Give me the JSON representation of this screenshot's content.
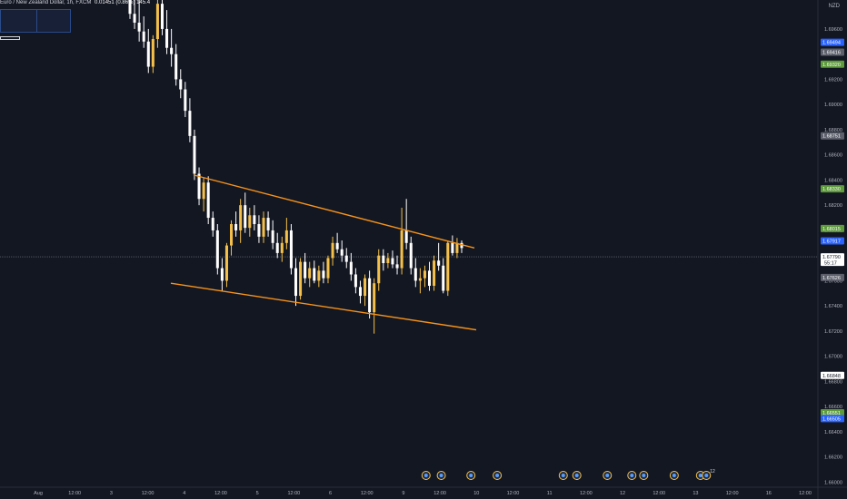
{
  "header": {
    "symbol": "Euro / New Zealand Dollar, 1h, FXCM",
    "change": "0.01451 (0.86%) 145.4"
  },
  "currency": "NZD",
  "colors": {
    "background": "#131722",
    "bull": "#f5c04a",
    "bear": "#ffffff",
    "trendline": "#f7931a",
    "axis_text": "#b2b5be",
    "badge_blue": "#2962ff",
    "badge_green": "#5d9b3b",
    "badge_gray": "#5d606b",
    "badge_white": "#ffffff"
  },
  "chart_data": {
    "type": "candlestick",
    "yscale": [
      1.6596,
      1.6983
    ],
    "y_ticks": [
      "1.69600",
      "1.69400",
      "1.69200",
      "1.69000",
      "1.68800",
      "1.68600",
      "1.68400",
      "1.68200",
      "1.68000",
      "1.67800",
      "1.67600",
      "1.67400",
      "1.67200",
      "1.67000",
      "1.66800",
      "1.66600",
      "1.66400",
      "1.66200",
      "1.66000"
    ],
    "x_labels": [
      "Aug",
      "12:00",
      "3",
      "12:00",
      "4",
      "12:00",
      "5",
      "12:00",
      "6",
      "12:00",
      "9",
      "12:00",
      "10",
      "12:00",
      "11",
      "12:00",
      "12",
      "12:00",
      "13",
      "12:00",
      "16",
      "12:00"
    ],
    "badges": [
      {
        "label": "1.69494",
        "style": "blue"
      },
      {
        "label": "1.69416",
        "style": "gray"
      },
      {
        "label": "1.69320",
        "style": "green"
      },
      {
        "label": "1.68751",
        "style": "gray"
      },
      {
        "label": "1.68330",
        "style": "green"
      },
      {
        "label": "1.68015",
        "style": "green"
      },
      {
        "label": "1.67917",
        "style": "blue"
      },
      {
        "label": "1.67790",
        "sub": "55:17",
        "style": "white"
      },
      {
        "label": "1.67626",
        "style": "gray"
      },
      {
        "label": "1.66848",
        "style": "white"
      },
      {
        "label": "1.66551",
        "style": "green"
      },
      {
        "label": "1.66505",
        "style": "blue"
      }
    ],
    "last_price": 1.6779,
    "trendlines": [
      {
        "name": "upper",
        "from": [
          0,
          1.6844
        ],
        "to": [
          1,
          1.6786
        ]
      },
      {
        "name": "lower",
        "from": [
          0,
          1.6758
        ],
        "to": [
          1,
          1.6721
        ]
      }
    ],
    "candles": [
      [
        1.6985,
        1.6995,
        1.6968,
        1.6972
      ],
      [
        1.6972,
        1.699,
        1.696,
        1.6965
      ],
      [
        1.6965,
        1.6985,
        1.695,
        1.6958
      ],
      [
        1.6958,
        1.697,
        1.6945,
        1.695
      ],
      [
        1.695,
        1.696,
        1.6925,
        1.693
      ],
      [
        1.693,
        1.6955,
        1.6925,
        1.6952
      ],
      [
        1.6952,
        1.6985,
        1.6945,
        1.698
      ],
      [
        1.698,
        1.699,
        1.6955,
        1.696
      ],
      [
        1.696,
        1.6975,
        1.694,
        1.6945
      ],
      [
        1.6945,
        1.696,
        1.693,
        1.694
      ],
      [
        1.694,
        1.6948,
        1.6915,
        1.692
      ],
      [
        1.692,
        1.6928,
        1.6905,
        1.6912
      ],
      [
        1.6912,
        1.6918,
        1.689,
        1.6895
      ],
      [
        1.6895,
        1.6905,
        1.687,
        1.6875
      ],
      [
        1.6875,
        1.688,
        1.684,
        1.6845
      ],
      [
        1.6845,
        1.685,
        1.682,
        1.6825
      ],
      [
        1.6825,
        1.6842,
        1.6815,
        1.6838
      ],
      [
        1.6838,
        1.6843,
        1.6805,
        1.681
      ],
      [
        1.681,
        1.6815,
        1.6795,
        1.68
      ],
      [
        1.68,
        1.6805,
        1.6765,
        1.677
      ],
      [
        1.677,
        1.6778,
        1.6752,
        1.676
      ],
      [
        1.676,
        1.679,
        1.6755,
        1.6788
      ],
      [
        1.6788,
        1.6808,
        1.678,
        1.6805
      ],
      [
        1.6805,
        1.6815,
        1.6795,
        1.68
      ],
      [
        1.68,
        1.6825,
        1.679,
        1.682
      ],
      [
        1.682,
        1.683,
        1.6798,
        1.6802
      ],
      [
        1.6802,
        1.6818,
        1.6795,
        1.6812
      ],
      [
        1.6812,
        1.682,
        1.68,
        1.6805
      ],
      [
        1.6805,
        1.6812,
        1.679,
        1.6795
      ],
      [
        1.6795,
        1.6815,
        1.679,
        1.681
      ],
      [
        1.681,
        1.6815,
        1.6795,
        1.68
      ],
      [
        1.68,
        1.6808,
        1.6785,
        1.679
      ],
      [
        1.679,
        1.6798,
        1.6778,
        1.6782
      ],
      [
        1.6782,
        1.6795,
        1.6775,
        1.679
      ],
      [
        1.679,
        1.681,
        1.6785,
        1.68
      ],
      [
        1.68,
        1.6805,
        1.6765,
        1.677
      ],
      [
        1.677,
        1.6778,
        1.674,
        1.6748
      ],
      [
        1.6748,
        1.6778,
        1.6745,
        1.6775
      ],
      [
        1.6775,
        1.6782,
        1.6758,
        1.6762
      ],
      [
        1.6762,
        1.6775,
        1.6755,
        1.677
      ],
      [
        1.677,
        1.6776,
        1.6758,
        1.676
      ],
      [
        1.676,
        1.6772,
        1.6755,
        1.6768
      ],
      [
        1.6768,
        1.6775,
        1.6758,
        1.6762
      ],
      [
        1.6762,
        1.678,
        1.6758,
        1.6778
      ],
      [
        1.6778,
        1.6795,
        1.6772,
        1.679
      ],
      [
        1.679,
        1.6798,
        1.6782,
        1.6785
      ],
      [
        1.6785,
        1.6792,
        1.6775,
        1.678
      ],
      [
        1.678,
        1.6786,
        1.677,
        1.6775
      ],
      [
        1.6775,
        1.6782,
        1.676,
        1.6765
      ],
      [
        1.6765,
        1.677,
        1.675,
        1.6755
      ],
      [
        1.6755,
        1.676,
        1.6742,
        1.6748
      ],
      [
        1.6748,
        1.6765,
        1.674,
        1.6762
      ],
      [
        1.6762,
        1.6768,
        1.673,
        1.6735
      ],
      [
        1.6735,
        1.6762,
        1.6718,
        1.6758
      ],
      [
        1.6758,
        1.6785,
        1.6752,
        1.678
      ],
      [
        1.678,
        1.6785,
        1.6768,
        1.6774
      ],
      [
        1.6774,
        1.6782,
        1.677,
        1.6778
      ],
      [
        1.6778,
        1.6784,
        1.677,
        1.6773
      ],
      [
        1.6773,
        1.678,
        1.6765,
        1.677
      ],
      [
        1.677,
        1.6818,
        1.6765,
        1.68
      ],
      [
        1.68,
        1.6825,
        1.6785,
        1.679
      ],
      [
        1.679,
        1.6795,
        1.6765,
        1.677
      ],
      [
        1.677,
        1.6778,
        1.6755,
        1.676
      ],
      [
        1.676,
        1.677,
        1.675,
        1.6762
      ],
      [
        1.6762,
        1.6772,
        1.6755,
        1.6768
      ],
      [
        1.6768,
        1.6775,
        1.6752,
        1.6756
      ],
      [
        1.6756,
        1.678,
        1.6752,
        1.6776
      ],
      [
        1.6776,
        1.679,
        1.6768,
        1.6772
      ],
      [
        1.6772,
        1.6778,
        1.675,
        1.6752
      ],
      [
        1.6752,
        1.6792,
        1.6748,
        1.679
      ],
      [
        1.679,
        1.6796,
        1.678,
        1.6782
      ],
      [
        1.6782,
        1.6794,
        1.6778,
        1.679
      ],
      [
        1.679,
        1.6792,
        1.6782,
        1.6786
      ]
    ]
  },
  "events": {
    "x_fractions": [
      0.503,
      0.521,
      0.556,
      0.587,
      0.665,
      0.681,
      0.717,
      0.746,
      0.76,
      0.796,
      0.827,
      0.834
    ],
    "counts": [
      "",
      "",
      "",
      "",
      "",
      "",
      "",
      "",
      "",
      "",
      "",
      "12"
    ]
  }
}
